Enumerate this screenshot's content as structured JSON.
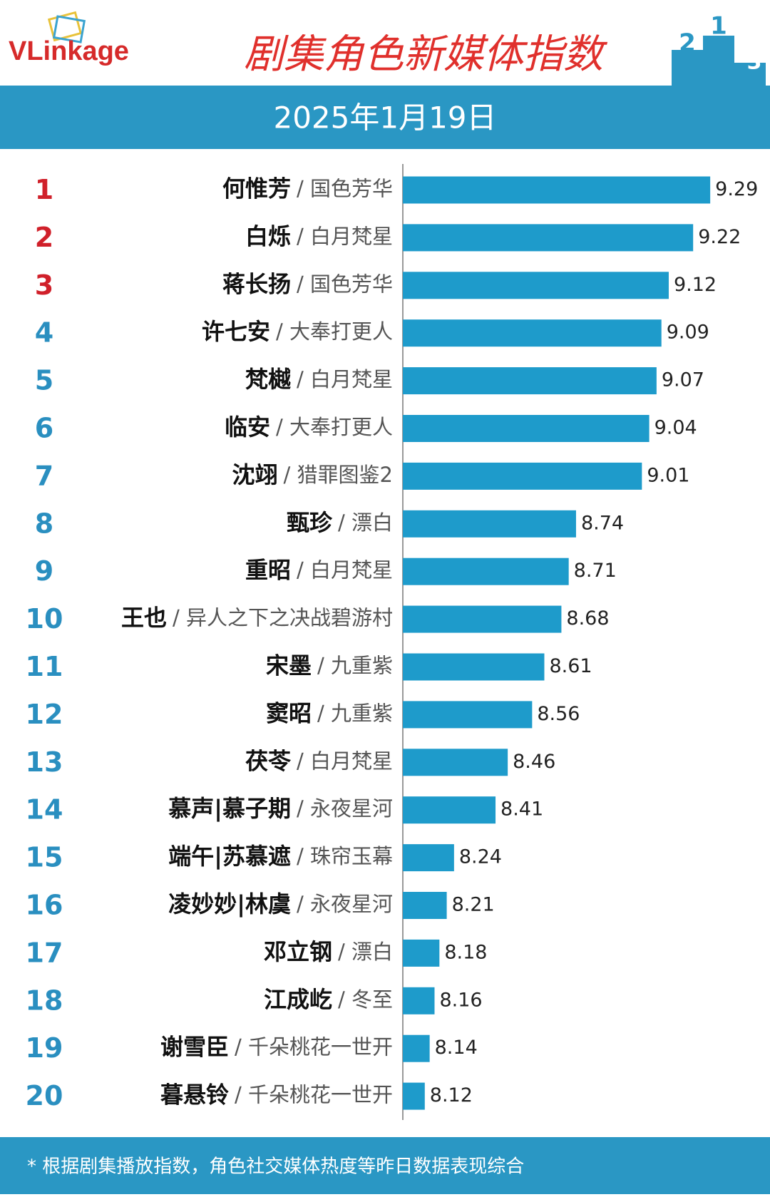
{
  "header": {
    "logo": "VLinkage",
    "podium": [
      "2",
      "1",
      "3"
    ]
  },
  "chart_data": {
    "type": "bar",
    "orientation": "horizontal",
    "title": "剧集角色新媒体指数",
    "subtitle": "2025年1月19日",
    "ranks": [
      1,
      2,
      3,
      4,
      5,
      6,
      7,
      8,
      9,
      10,
      11,
      12,
      13,
      14,
      15,
      16,
      17,
      18,
      19,
      20
    ],
    "categories": [
      "何惟芳",
      "白烁",
      "蒋长扬",
      "许七安",
      "梵樾",
      "临安",
      "沈翊",
      "甄珍",
      "重昭",
      "王也",
      "宋墨",
      "窦昭",
      "茯苓",
      "慕声|慕子期",
      "端午|苏慕遮",
      "凌妙妙|林虞",
      "邓立钢",
      "江成屹",
      "谢雪臣",
      "暮悬铃"
    ],
    "shows": [
      "/ 国色芳华",
      "/ 白月梵星",
      "/ 国色芳华",
      "/ 大奉打更人",
      "/ 白月梵星",
      "/ 大奉打更人",
      "/ 猎罪图鉴2",
      "/ 漂白",
      "/ 白月梵星",
      "/ 异人之下之决战碧游村",
      "/ 九重紫",
      "/ 九重紫",
      "/ 白月梵星",
      "/ 永夜星河",
      "/ 珠帘玉幕",
      "/ 永夜星河",
      "/ 漂白",
      "/ 冬至",
      "/ 千朵桃花一世开",
      "/ 千朵桃花一世开"
    ],
    "values": [
      9.29,
      9.22,
      9.12,
      9.09,
      9.07,
      9.04,
      9.01,
      8.74,
      8.71,
      8.68,
      8.61,
      8.56,
      8.46,
      8.41,
      8.24,
      8.21,
      8.18,
      8.16,
      8.14,
      8.12
    ],
    "color": "#1e9bcb",
    "xlim": [
      8.03,
      9.5
    ],
    "note": "* 根据剧集播放指数，角色社交媒体热度等昨日数据表现综合"
  }
}
